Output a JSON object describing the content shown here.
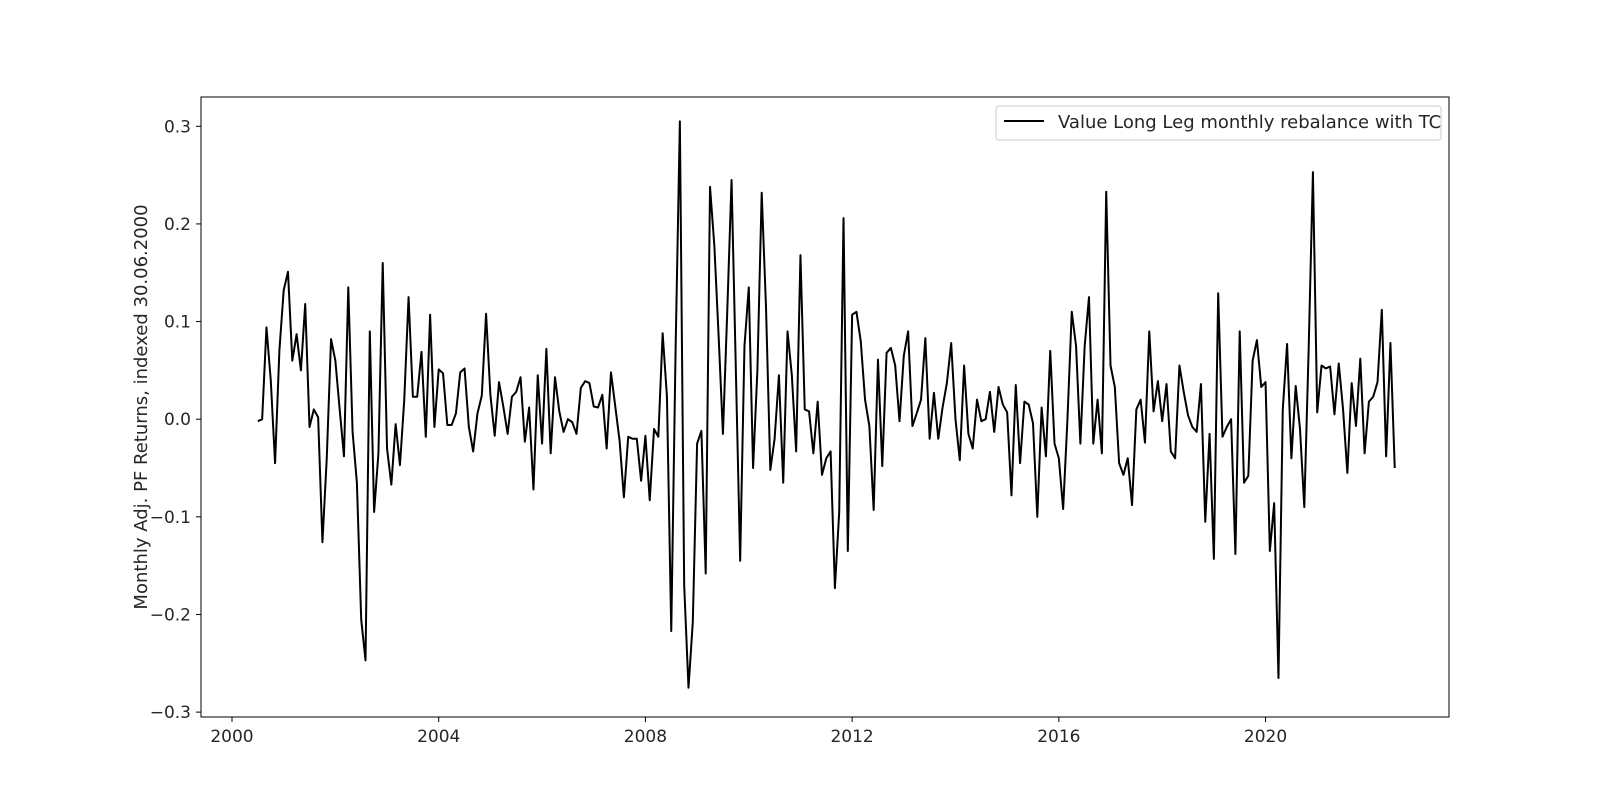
{
  "chart_data": {
    "type": "line",
    "title": "",
    "xlabel": "",
    "ylabel": "Monthly Adj. PF Returns, indexed 30.06.2000",
    "xlim": [
      1999.4,
      2023.55
    ],
    "ylim": [
      -0.305,
      0.33
    ],
    "xticks": [
      2000,
      2004,
      2008,
      2012,
      2016,
      2020
    ],
    "xtick_labels": [
      "2000",
      "2004",
      "2008",
      "2012",
      "2016",
      "2020"
    ],
    "yticks": [
      -0.3,
      -0.2,
      -0.1,
      0.0,
      0.1,
      0.2,
      0.3
    ],
    "ytick_labels": [
      "−0.3",
      "−0.2",
      "−0.1",
      "0.0",
      "0.1",
      "0.2",
      "0.3"
    ],
    "grid": false,
    "legend_position": "upper right",
    "line_color": "#000000",
    "series": [
      {
        "name": "Value Long Leg monthly rebalance with TC",
        "x_start": "2000-07",
        "step": "month",
        "values": [
          -0.002,
          0.0,
          0.094,
          0.04,
          -0.045,
          0.07,
          0.132,
          0.151,
          0.06,
          0.087,
          0.05,
          0.118,
          -0.008,
          0.01,
          0.002,
          -0.126,
          -0.04,
          0.082,
          0.06,
          0.01,
          -0.038,
          0.135,
          -0.013,
          -0.065,
          -0.205,
          -0.247,
          0.09,
          -0.095,
          -0.035,
          0.16,
          -0.03,
          -0.067,
          -0.005,
          -0.047,
          0.02,
          0.125,
          0.023,
          0.023,
          0.069,
          -0.018,
          0.107,
          -0.008,
          0.051,
          0.047,
          -0.006,
          -0.006,
          0.006,
          0.048,
          0.052,
          -0.008,
          -0.033,
          0.006,
          0.024,
          0.108,
          0.025,
          -0.017,
          0.038,
          0.013,
          -0.015,
          0.023,
          0.028,
          0.043,
          -0.023,
          0.012,
          -0.072,
          0.045,
          -0.025,
          0.072,
          -0.035,
          0.043,
          0.008,
          -0.013,
          0.0,
          -0.003,
          -0.015,
          0.032,
          0.039,
          0.037,
          0.013,
          0.012,
          0.025,
          -0.03,
          0.048,
          0.013,
          -0.022,
          -0.08,
          -0.018,
          -0.02,
          -0.02,
          -0.063,
          -0.017,
          -0.083,
          -0.01,
          -0.018,
          0.088,
          0.023,
          -0.217,
          0.07,
          0.305,
          -0.17,
          -0.275,
          -0.208,
          -0.025,
          -0.012,
          -0.158,
          0.238,
          0.178,
          0.085,
          -0.015,
          0.11,
          0.245,
          0.05,
          -0.145,
          0.075,
          0.135,
          -0.05,
          0.05,
          0.232,
          0.115,
          -0.052,
          -0.02,
          0.045,
          -0.065,
          0.09,
          0.045,
          -0.033,
          0.168,
          0.01,
          0.008,
          -0.035,
          0.018,
          -0.057,
          -0.04,
          -0.033,
          -0.173,
          -0.095,
          0.206,
          -0.135,
          0.107,
          0.11,
          0.08,
          0.02,
          -0.007,
          -0.093,
          0.061,
          -0.048,
          0.068,
          0.073,
          0.055,
          -0.002,
          0.065,
          0.09,
          -0.007,
          0.006,
          0.02,
          0.083,
          -0.02,
          0.027,
          -0.02,
          0.012,
          0.037,
          0.078,
          0.0,
          -0.042,
          0.055,
          -0.015,
          -0.03,
          0.02,
          -0.002,
          0.0,
          0.028,
          -0.013,
          0.033,
          0.015,
          0.007,
          -0.078,
          0.035,
          -0.045,
          0.018,
          0.015,
          -0.004,
          -0.1,
          0.012,
          -0.038,
          0.07,
          -0.025,
          -0.04,
          -0.092,
          0.0,
          0.11,
          0.075,
          -0.025,
          0.075,
          0.125,
          -0.025,
          0.02,
          -0.035,
          0.233,
          0.055,
          0.033,
          -0.045,
          -0.057,
          -0.04,
          -0.088,
          0.01,
          0.02,
          -0.024,
          0.09,
          0.008,
          0.039,
          -0.002,
          0.036,
          -0.033,
          -0.04,
          0.055,
          0.028,
          0.004,
          -0.008,
          -0.013,
          0.036,
          -0.105,
          -0.015,
          -0.143,
          0.129,
          -0.018,
          -0.008,
          0.0,
          -0.138,
          0.09,
          -0.065,
          -0.058,
          0.06,
          0.081,
          0.033,
          0.038,
          -0.135,
          -0.086,
          -0.265,
          0.01,
          0.077,
          -0.04,
          0.034,
          -0.01,
          -0.09,
          0.07,
          0.253,
          0.007,
          0.055,
          0.052,
          0.054,
          0.005,
          0.057,
          0.01,
          -0.055,
          0.037,
          -0.007,
          0.062,
          -0.035,
          0.018,
          0.023,
          0.038,
          0.112,
          -0.038,
          0.078,
          -0.05
        ]
      }
    ]
  }
}
